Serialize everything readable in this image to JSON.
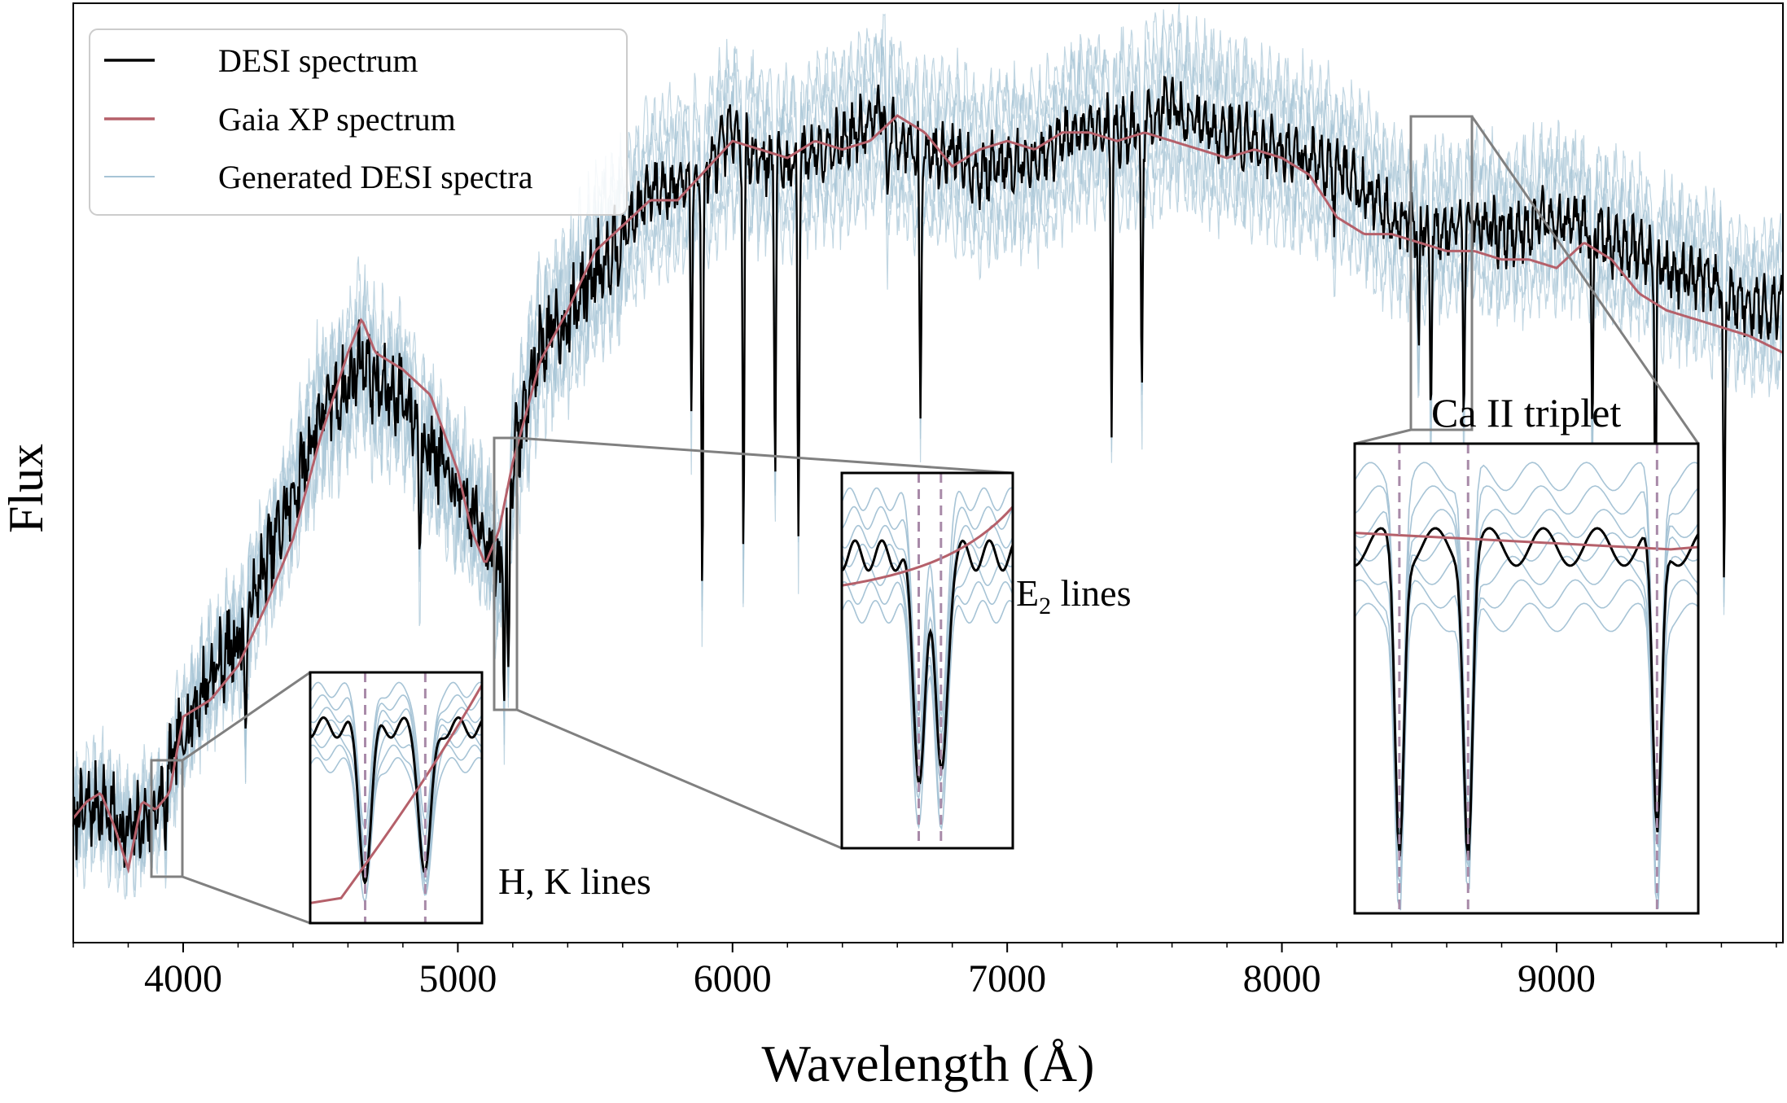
{
  "chart_data": {
    "type": "line",
    "title": "",
    "xlabel": "Wavelength (Å)",
    "ylabel": "Flux",
    "xlim": [
      3600,
      9824
    ],
    "ylim": [
      0,
      1
    ],
    "grid": false,
    "legend_position": "top-left",
    "x_ticks": [
      4000,
      5000,
      6000,
      7000,
      8000,
      9000
    ],
    "x_tick_labels": [
      "4000",
      "5000",
      "6000",
      "7000",
      "8000",
      "9000"
    ],
    "x_minor_step": 200,
    "colors": {
      "desi": "#000000",
      "gaia": "#b5606a",
      "generated": "#a7c4d6",
      "dashed": "#a88aa8",
      "box": "#808080"
    },
    "series": [
      {
        "name": "DESI spectrum",
        "x": [
          3600,
          3700,
          3800,
          3900,
          4000,
          4100,
          4200,
          4300,
          4400,
          4500,
          4600,
          4650,
          4700,
          4800,
          4900,
          5000,
          5100,
          5150,
          5200,
          5300,
          5400,
          5500,
          5600,
          5700,
          5800,
          5900,
          6000,
          6100,
          6200,
          6300,
          6400,
          6500,
          6550,
          6600,
          6700,
          6800,
          6900,
          7000,
          7100,
          7200,
          7300,
          7400,
          7500,
          7600,
          7700,
          7800,
          7900,
          8000,
          8100,
          8200,
          8300,
          8400,
          8500,
          8600,
          8700,
          8800,
          8900,
          9000,
          9100,
          9200,
          9300,
          9400,
          9500,
          9600,
          9700,
          9824
        ],
        "y": [
          0.12,
          0.14,
          0.1,
          0.13,
          0.22,
          0.29,
          0.33,
          0.42,
          0.5,
          0.6,
          0.63,
          0.67,
          0.63,
          0.62,
          0.56,
          0.5,
          0.46,
          0.4,
          0.54,
          0.68,
          0.71,
          0.77,
          0.81,
          0.86,
          0.87,
          0.88,
          0.93,
          0.9,
          0.89,
          0.91,
          0.92,
          0.94,
          0.96,
          0.92,
          0.9,
          0.91,
          0.88,
          0.9,
          0.89,
          0.92,
          0.94,
          0.93,
          0.94,
          0.96,
          0.94,
          0.93,
          0.92,
          0.91,
          0.9,
          0.89,
          0.86,
          0.83,
          0.82,
          0.81,
          0.83,
          0.81,
          0.82,
          0.83,
          0.82,
          0.8,
          0.79,
          0.77,
          0.76,
          0.75,
          0.72,
          0.73
        ]
      },
      {
        "name": "Gaia XP spectrum",
        "x": [
          3600,
          3650,
          3700,
          3750,
          3800,
          3850,
          3900,
          3950,
          4000,
          4100,
          4200,
          4300,
          4400,
          4500,
          4600,
          4650,
          4700,
          4800,
          4900,
          5000,
          5050,
          5100,
          5150,
          5200,
          5300,
          5400,
          5500,
          5600,
          5700,
          5800,
          6000,
          6100,
          6200,
          6300,
          6400,
          6500,
          6600,
          6700,
          6800,
          6900,
          7000,
          7100,
          7200,
          7300,
          7400,
          7500,
          7600,
          7700,
          7800,
          7900,
          8000,
          8100,
          8200,
          8300,
          8400,
          8500,
          8600,
          8700,
          8800,
          8900,
          9000,
          9100,
          9200,
          9300,
          9400,
          9500,
          9600,
          9700,
          9824
        ],
        "y": [
          0.12,
          0.14,
          0.15,
          0.11,
          0.06,
          0.14,
          0.13,
          0.15,
          0.24,
          0.26,
          0.3,
          0.37,
          0.45,
          0.57,
          0.67,
          0.71,
          0.67,
          0.65,
          0.62,
          0.53,
          0.46,
          0.42,
          0.46,
          0.54,
          0.66,
          0.72,
          0.79,
          0.82,
          0.85,
          0.85,
          0.92,
          0.91,
          0.9,
          0.92,
          0.91,
          0.92,
          0.95,
          0.93,
          0.89,
          0.91,
          0.92,
          0.91,
          0.93,
          0.93,
          0.92,
          0.93,
          0.92,
          0.91,
          0.9,
          0.91,
          0.9,
          0.88,
          0.83,
          0.81,
          0.81,
          0.8,
          0.79,
          0.79,
          0.78,
          0.78,
          0.77,
          0.8,
          0.78,
          0.74,
          0.72,
          0.71,
          0.7,
          0.69,
          0.67
        ]
      },
      {
        "name": "Generated DESI spectra",
        "x": [],
        "y": []
      }
    ],
    "absorption_lines": [
      {
        "x": 3934,
        "depth": 0.08
      },
      {
        "x": 4227,
        "depth": 0.16
      },
      {
        "x": 4861,
        "depth": 0.16
      },
      {
        "x": 5169,
        "depth": 0.18
      },
      {
        "x": 5184,
        "depth": 0.22
      },
      {
        "x": 5850,
        "depth": 0.25
      },
      {
        "x": 5890,
        "depth": 0.5
      },
      {
        "x": 6040,
        "depth": 0.5
      },
      {
        "x": 6155,
        "depth": 0.36
      },
      {
        "x": 6240,
        "depth": 0.43
      },
      {
        "x": 6563,
        "depth": 0.12
      },
      {
        "x": 6684,
        "depth": 0.3
      },
      {
        "x": 7380,
        "depth": 0.32
      },
      {
        "x": 7490,
        "depth": 0.32
      },
      {
        "x": 8191,
        "depth": 0.05
      },
      {
        "x": 8498,
        "depth": 0.15
      },
      {
        "x": 8542,
        "depth": 0.22
      },
      {
        "x": 8662,
        "depth": 0.22
      },
      {
        "x": 9130,
        "depth": 0.28
      },
      {
        "x": 9360,
        "depth": 0.3
      },
      {
        "x": 9610,
        "depth": 0.38
      }
    ],
    "legend": [
      "DESI spectrum",
      "Gaia XP spectrum",
      "Generated DESI spectra"
    ],
    "annotations": {
      "hk": {
        "label": "H, K lines",
        "x_range": [
          3880,
          3985
        ]
      },
      "e2": {
        "label": "E",
        "label_sub": "2",
        "label_rest": " lines",
        "x_range": [
          5140,
          5220
        ]
      },
      "ca": {
        "label": "Ca II triplet",
        "x_range": [
          8470,
          8690
        ]
      }
    }
  }
}
